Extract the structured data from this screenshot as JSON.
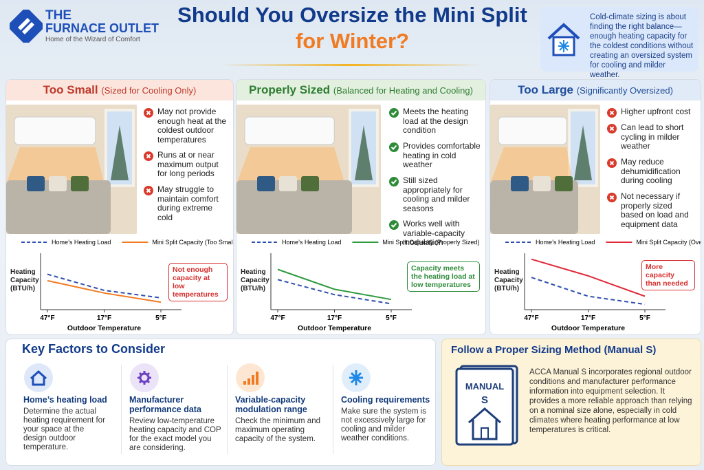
{
  "brand": {
    "line1": "THE",
    "line2": "FURNACE OUTLET",
    "tagline": "Home of the Wizard of Comfort"
  },
  "header": {
    "title_line1": "Should You Oversize the Mini Split",
    "title_line2": "for Winter?"
  },
  "intro": "Cold-climate sizing is about finding the right balance—enough heating capacity for the coldest conditions without creating an oversized system for cooling and milder weather.",
  "panels": [
    {
      "title": "Too Small",
      "subtitle": "(Sized for Cooling Only)",
      "points": [
        "May not provide enough heat at the coldest outdoor temperatures",
        "Runs at or near maximum output for long periods",
        "May struggle to maintain comfort during extreme cold"
      ]
    },
    {
      "title": "Properly Sized",
      "subtitle": "(Balanced for Heating and Cooling)",
      "points": [
        "Meets the heating load at the design condition",
        "Provides comfortable heating in cold weather",
        "Still sized appropriately for cooling and milder seasons",
        "Works well with variable-capacity modulation"
      ]
    },
    {
      "title": "Too Large",
      "subtitle": "(Significantly Oversized)",
      "points": [
        "Higher upfront cost",
        "Can lead to short cycling in milder weather",
        "May reduce dehumidification during cooling",
        "Not necessary if properly sized based on load and equipment data"
      ]
    }
  ],
  "chart_data": [
    {
      "type": "line",
      "y_label": "Heating Capacity (BTU/h)",
      "x_label": "Outdoor Temperature",
      "categories": [
        "47°F",
        "17°F",
        "5°F"
      ],
      "ylim": [
        0,
        100
      ],
      "callout": "Not enough capacity at low temperatures",
      "callout_color": "#d62f2f",
      "series": [
        {
          "name": "Home’s Heating Load",
          "color": "#2f4fb0",
          "dashed": true,
          "values": [
            66,
            36,
            22
          ]
        },
        {
          "name": "Mini Split Capacity (Too Small)",
          "color": "#f07b22",
          "dashed": false,
          "values": [
            54,
            31,
            14
          ]
        }
      ]
    },
    {
      "type": "line",
      "y_label": "Heating Capacity (BTU/h)",
      "x_label": "Outdoor Temperature",
      "categories": [
        "47°F",
        "17°F",
        "5°F"
      ],
      "ylim": [
        0,
        100
      ],
      "callout": "Capacity meets the heating load at low temperatures",
      "callout_color": "#2e8b3a",
      "series": [
        {
          "name": "Home’s Heating Load",
          "color": "#2f4fb0",
          "dashed": true,
          "values": [
            56,
            28,
            11
          ]
        },
        {
          "name": "Mini Split Capacity (Properly Sized)",
          "color": "#2e9a3e",
          "dashed": false,
          "values": [
            75,
            38,
            19
          ]
        }
      ]
    },
    {
      "type": "line",
      "y_label": "Heating Capacity (BTU/h)",
      "x_label": "Outdoor Temperature",
      "categories": [
        "47°F",
        "17°F",
        "5°F"
      ],
      "ylim": [
        0,
        100
      ],
      "callout": "More capacity than needed",
      "callout_color": "#d62f2f",
      "series": [
        {
          "name": "Home’s Heating Load",
          "color": "#2f4fb0",
          "dashed": true,
          "values": [
            60,
            25,
            10
          ]
        },
        {
          "name": "Mini Split Capacity (Oversized)",
          "color": "#e02a3a",
          "dashed": false,
          "values": [
            94,
            63,
            25
          ]
        }
      ]
    }
  ],
  "key_factors": {
    "title": "Key Factors to Consider",
    "items": [
      {
        "title": "Home’s heating load",
        "text": "Determine the actual heating requirement for your space at the design outdoor temperature."
      },
      {
        "title": "Manufacturer performance data",
        "text": "Review low-temperature heating capacity and COP for the exact model you are considering."
      },
      {
        "title": "Variable-capacity modulation range",
        "text": "Check the minimum and maximum operating capacity of the system."
      },
      {
        "title": "Cooling requirements",
        "text": "Make sure the system is not excessively large for cooling and milder weather conditions."
      }
    ]
  },
  "manual_s": {
    "title": "Follow a Proper Sizing Method (Manual S)",
    "book_line1": "MANUAL",
    "book_line2": "S",
    "text": "ACCA Manual S incorporates regional outdoor conditions and manufacturer performance information into equipment selection. It provides a more reliable approach than relying on a nominal size alone, especially in cold climates where heating performance at low temperatures is critical."
  }
}
